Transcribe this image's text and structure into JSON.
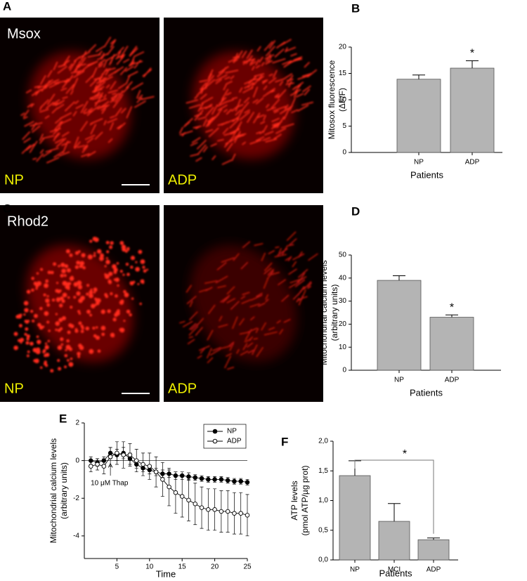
{
  "panels": {
    "labels": [
      "A",
      "B",
      "C",
      "D",
      "E",
      "F"
    ]
  },
  "images": [
    {
      "label": "Msox",
      "left": "NP",
      "right": "ADP"
    },
    {
      "label": "Rhod2",
      "left": "NP",
      "right": "ADP"
    }
  ],
  "chart_data": [
    {
      "type": "bar",
      "categories": [
        "NP",
        "ADP"
      ],
      "values": [
        13.9,
        16.0
      ],
      "errors": [
        0.8,
        1.4
      ],
      "color": "#b4b4b4",
      "ylim": [
        0,
        20
      ],
      "yticks": [
        0,
        5,
        10,
        15,
        20
      ],
      "ylabel": [
        "Mitosox fluorescence",
        "(ΔF/F)"
      ],
      "xlabel": "Patients",
      "annotation": "*"
    },
    {
      "type": "bar",
      "categories": [
        "NP",
        "ADP"
      ],
      "values": [
        39,
        23
      ],
      "errors": [
        2,
        1
      ],
      "color": "#b4b4b4",
      "ylim": [
        0,
        50
      ],
      "yticks": [
        0,
        10,
        20,
        30,
        40,
        50
      ],
      "ylabel": [
        "Mitochondrial calcium levels",
        "(arbitrary units)"
      ],
      "xlabel": "Patients",
      "annotation": "*"
    },
    {
      "type": "line",
      "x": [
        1,
        2,
        3,
        4,
        5,
        6,
        7,
        8,
        9,
        10,
        11,
        12,
        13,
        14,
        15,
        16,
        17,
        18,
        19,
        20,
        21,
        22,
        23,
        24,
        25
      ],
      "series": [
        {
          "name": "NP",
          "color": "#000000",
          "marker_fill": "#000000",
          "values": [
            0,
            -0.1,
            0,
            0.4,
            0.3,
            0.4,
            0.1,
            -0.2,
            -0.4,
            -0.5,
            -0.6,
            -0.7,
            -0.7,
            -0.8,
            -0.8,
            -0.85,
            -0.9,
            -0.95,
            -1.0,
            -1.0,
            -1.0,
            -1.05,
            -1.1,
            -1.1,
            -1.15
          ],
          "errors": [
            0.2,
            0.2,
            0.2,
            0.3,
            0.3,
            0.3,
            0.3,
            0.2,
            0.2,
            0.2,
            0.2,
            0.2,
            0.2,
            0.2,
            0.2,
            0.2,
            0.15,
            0.15,
            0.15,
            0.15,
            0.15,
            0.15,
            0.15,
            0.15,
            0.15
          ]
        },
        {
          "name": "ADP",
          "color": "#000000",
          "marker_fill": "#ffffff",
          "values": [
            -0.3,
            -0.2,
            -0.3,
            0.2,
            0.4,
            0.3,
            0.3,
            0.0,
            -0.2,
            -0.3,
            -0.6,
            -1.0,
            -1.4,
            -1.7,
            -1.9,
            -2.1,
            -2.3,
            -2.5,
            -2.6,
            -2.6,
            -2.7,
            -2.7,
            -2.8,
            -2.8,
            -2.9
          ],
          "errors": [
            0.3,
            0.3,
            0.4,
            0.5,
            0.6,
            0.7,
            0.6,
            0.6,
            0.6,
            0.7,
            0.8,
            0.9,
            1.0,
            1.1,
            1.1,
            1.1,
            1.1,
            1.1,
            1.1,
            1.1,
            1.1,
            1.1,
            1.1,
            1.1,
            1.1
          ]
        }
      ],
      "xlim": [
        0,
        25
      ],
      "xticks": [
        5,
        10,
        15,
        20,
        25
      ],
      "ylim": [
        -5.2,
        2
      ],
      "yticks": [
        -4,
        -2,
        0,
        2
      ],
      "ylabel": [
        "Mitochondrial calcium levels",
        "(arbitrary units)"
      ],
      "xlabel": "Time",
      "legend": "upper right",
      "annotation": {
        "text": "10 μM Thap",
        "x": 4
      }
    },
    {
      "type": "bar",
      "categories": [
        "NP",
        "MCI",
        "ADP"
      ],
      "values": [
        1.42,
        0.65,
        0.34
      ],
      "errors": [
        0.25,
        0.3,
        0.03
      ],
      "color": "#b4b4b4",
      "ylim": [
        0,
        2.0
      ],
      "yticks": [
        {
          "value": 0,
          "label": "0,0"
        },
        {
          "value": 0.5,
          "label": "0,5"
        },
        {
          "value": 1.0,
          "label": "1,0"
        },
        {
          "value": 1.5,
          "label": "1,5"
        },
        {
          "value": 2.0,
          "label": "2,0"
        }
      ],
      "ylabel": [
        "ATP levels",
        "(pmol ATP/µg prot)"
      ],
      "xlabel": "Patients",
      "annotation": "*"
    }
  ]
}
